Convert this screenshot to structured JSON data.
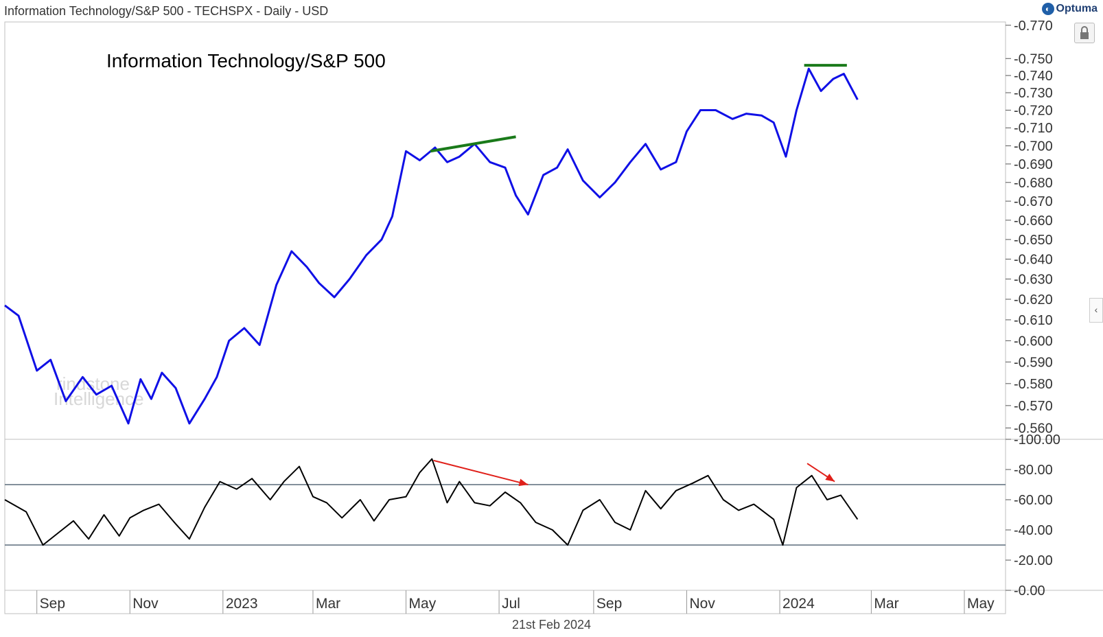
{
  "header": {
    "title": "Information Technology/S&P 500 - TECHSPX - Daily - USD",
    "brand": "Optuma",
    "date_label": "21st Feb 2024"
  },
  "watermark": {
    "line1": "rindstone",
    "line2": "Intelligence"
  },
  "colors": {
    "price_line": "#1010e6",
    "rsi_line": "#000000",
    "trendline": "#1a7a1a",
    "arrow": "#e0201a",
    "grid": "#cccccc",
    "level_line": "#5a6a7a"
  },
  "chart_data": [
    {
      "type": "line",
      "title": "Information Technology/S&P 500",
      "ylim": [
        0.555,
        0.772
      ],
      "y_scale": "log",
      "y_ticks": [
        "0.770",
        "0.750",
        "0.740",
        "0.730",
        "0.720",
        "0.710",
        "0.700",
        "0.690",
        "0.680",
        "0.670",
        "0.660",
        "0.650",
        "0.640",
        "0.630",
        "0.620",
        "0.610",
        "0.600",
        "0.590",
        "0.580",
        "0.570",
        "0.560"
      ],
      "x_ticks": [
        "Sep",
        "Nov",
        "2023",
        "Mar",
        "May",
        "Jul",
        "Sep",
        "Nov",
        "2024",
        "Mar",
        "May"
      ],
      "x_tick_dates": [
        "2022-09-01",
        "2022-11-01",
        "2023-01-01",
        "2023-03-01",
        "2023-05-01",
        "2023-07-01",
        "2023-09-01",
        "2023-11-01",
        "2024-01-01",
        "2024-03-01",
        "2024-05-01"
      ],
      "x_range": [
        "2022-08-11",
        "2024-05-28"
      ],
      "series": [
        {
          "x": [
            "2022-08-11",
            "2022-08-20",
            "2022-09-01",
            "2022-09-10",
            "2022-09-20",
            "2022-10-01",
            "2022-10-10",
            "2022-10-20",
            "2022-10-31",
            "2022-11-08",
            "2022-11-15",
            "2022-11-22",
            "2022-12-01",
            "2022-12-10",
            "2022-12-20",
            "2022-12-28",
            "2023-01-05",
            "2023-01-15",
            "2023-01-25",
            "2023-02-05",
            "2023-02-15",
            "2023-02-25",
            "2023-03-05",
            "2023-03-15",
            "2023-03-25",
            "2023-04-05",
            "2023-04-15",
            "2023-04-22",
            "2023-05-01",
            "2023-05-10",
            "2023-05-20",
            "2023-05-28",
            "2023-06-05",
            "2023-06-15",
            "2023-06-25",
            "2023-07-05",
            "2023-07-12",
            "2023-07-20",
            "2023-07-30",
            "2023-08-08",
            "2023-08-15",
            "2023-08-25",
            "2023-09-05",
            "2023-09-15",
            "2023-09-25",
            "2023-10-05",
            "2023-10-15",
            "2023-10-25",
            "2023-11-01",
            "2023-11-10",
            "2023-11-20",
            "2023-12-01",
            "2023-12-10",
            "2023-12-20",
            "2023-12-28",
            "2024-01-05",
            "2024-01-12",
            "2024-01-20",
            "2024-01-28",
            "2024-02-05",
            "2024-02-12",
            "2024-02-21"
          ],
          "values": [
            0.617,
            0.612,
            0.586,
            0.591,
            0.572,
            0.583,
            0.575,
            0.579,
            0.562,
            0.582,
            0.573,
            0.585,
            0.578,
            0.562,
            0.573,
            0.583,
            0.6,
            0.606,
            0.598,
            0.627,
            0.644,
            0.636,
            0.628,
            0.621,
            0.63,
            0.642,
            0.65,
            0.662,
            0.697,
            0.692,
            0.699,
            0.691,
            0.694,
            0.701,
            0.691,
            0.688,
            0.673,
            0.663,
            0.684,
            0.688,
            0.698,
            0.681,
            0.672,
            0.68,
            0.691,
            0.701,
            0.687,
            0.691,
            0.708,
            0.72,
            0.72,
            0.715,
            0.718,
            0.717,
            0.713,
            0.694,
            0.72,
            0.744,
            0.731,
            0.738,
            0.741,
            0.726
          ]
        }
      ],
      "annotations": [
        {
          "type": "trendline",
          "from": [
            "2023-05-17",
            0.697
          ],
          "to": [
            "2023-07-12",
            0.705
          ]
        },
        {
          "type": "trendline",
          "from": [
            "2024-01-17",
            0.746
          ],
          "to": [
            "2024-02-14",
            0.746
          ]
        }
      ]
    },
    {
      "type": "line",
      "title": "RSI",
      "ylim": [
        0,
        100
      ],
      "y_ticks": [
        "100.00",
        "80.00",
        "60.00",
        "40.00",
        "20.00",
        "0.00"
      ],
      "levels": [
        70,
        30
      ],
      "series": [
        {
          "x": [
            "2022-08-11",
            "2022-08-25",
            "2022-09-05",
            "2022-09-15",
            "2022-09-25",
            "2022-10-05",
            "2022-10-15",
            "2022-10-25",
            "2022-11-01",
            "2022-11-10",
            "2022-11-20",
            "2022-12-01",
            "2022-12-10",
            "2022-12-20",
            "2022-12-30",
            "2023-01-10",
            "2023-01-20",
            "2023-02-01",
            "2023-02-10",
            "2023-02-20",
            "2023-03-01",
            "2023-03-10",
            "2023-03-20",
            "2023-04-01",
            "2023-04-10",
            "2023-04-20",
            "2023-05-01",
            "2023-05-10",
            "2023-05-18",
            "2023-05-28",
            "2023-06-05",
            "2023-06-15",
            "2023-06-25",
            "2023-07-05",
            "2023-07-15",
            "2023-07-25",
            "2023-08-05",
            "2023-08-15",
            "2023-08-25",
            "2023-09-05",
            "2023-09-15",
            "2023-09-25",
            "2023-10-05",
            "2023-10-15",
            "2023-10-25",
            "2023-11-05",
            "2023-11-15",
            "2023-11-25",
            "2023-12-05",
            "2023-12-15",
            "2023-12-28",
            "2024-01-03",
            "2024-01-12",
            "2024-01-22",
            "2024-02-01",
            "2024-02-10",
            "2024-02-21"
          ],
          "values": [
            60,
            52,
            30,
            38,
            46,
            34,
            50,
            36,
            48,
            53,
            57,
            44,
            34,
            55,
            72,
            67,
            74,
            60,
            72,
            82,
            62,
            58,
            48,
            60,
            46,
            60,
            62,
            78,
            87,
            58,
            72,
            58,
            56,
            65,
            58,
            45,
            40,
            30,
            53,
            60,
            45,
            40,
            66,
            54,
            66,
            71,
            76,
            60,
            53,
            57,
            47,
            30,
            68,
            76,
            60,
            63,
            47
          ]
        }
      ],
      "annotations": [
        {
          "type": "arrow",
          "from": [
            "2023-05-19",
            86
          ],
          "to": [
            "2023-07-20",
            70
          ]
        },
        {
          "type": "arrow",
          "from": [
            "2024-01-19",
            84
          ],
          "to": [
            "2024-02-06",
            72
          ]
        }
      ]
    }
  ]
}
